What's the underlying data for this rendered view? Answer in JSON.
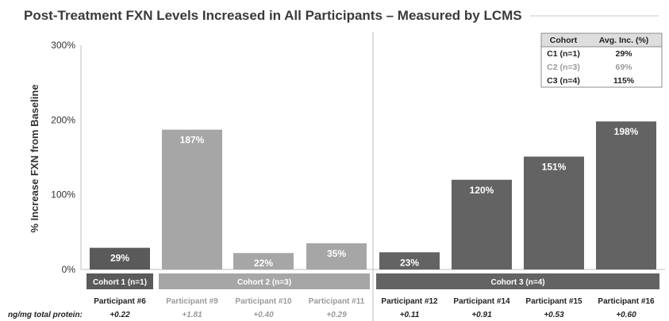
{
  "chart_data": {
    "type": "bar",
    "title": "Post-Treatment FXN Levels Increased in All Participants – Measured by LCMS",
    "ylabel": "% Increase FXN from Baseline",
    "ylim": [
      0,
      300
    ],
    "y_ticks": [
      "0%",
      "100%",
      "200%",
      "300%"
    ],
    "categories": [
      "Participant #6",
      "Participant #9",
      "Participant #10",
      "Participant #11",
      "Participant #12",
      "Participant #14",
      "Participant #15",
      "Participant #16"
    ],
    "values": [
      29,
      187,
      22,
      35,
      23,
      120,
      151,
      198
    ],
    "value_labels": [
      "29%",
      "187%",
      "22%",
      "35%",
      "23%",
      "120%",
      "151%",
      "198%"
    ],
    "cohort_index": [
      0,
      1,
      1,
      1,
      2,
      2,
      2,
      2
    ],
    "cohorts": [
      {
        "label": "Cohort 1 (n=1)",
        "color": "#5a5a5a",
        "text_color": "#222222"
      },
      {
        "label": "Cohort 2 (n=3)",
        "color": "#a6a6a6",
        "text_color": "#9a9a9a"
      },
      {
        "label": "Cohort 3 (n=4)",
        "color": "#636363",
        "text_color": "#222222"
      }
    ],
    "protein_row_label": "ng/mg total protein:",
    "protein_values": [
      "+0.22",
      "+1.81",
      "+0.40",
      "+0.29",
      "+0.11",
      "+0.91",
      "+0.53",
      "+0.60"
    ],
    "summary_table": {
      "headers": [
        "Cohort",
        "Avg. Inc. (%)"
      ],
      "rows": [
        [
          "C1 (n=1)",
          "29%"
        ],
        [
          "C2 (n=3)",
          "69%"
        ],
        [
          "C3 (n=4)",
          "115%"
        ]
      ]
    }
  }
}
